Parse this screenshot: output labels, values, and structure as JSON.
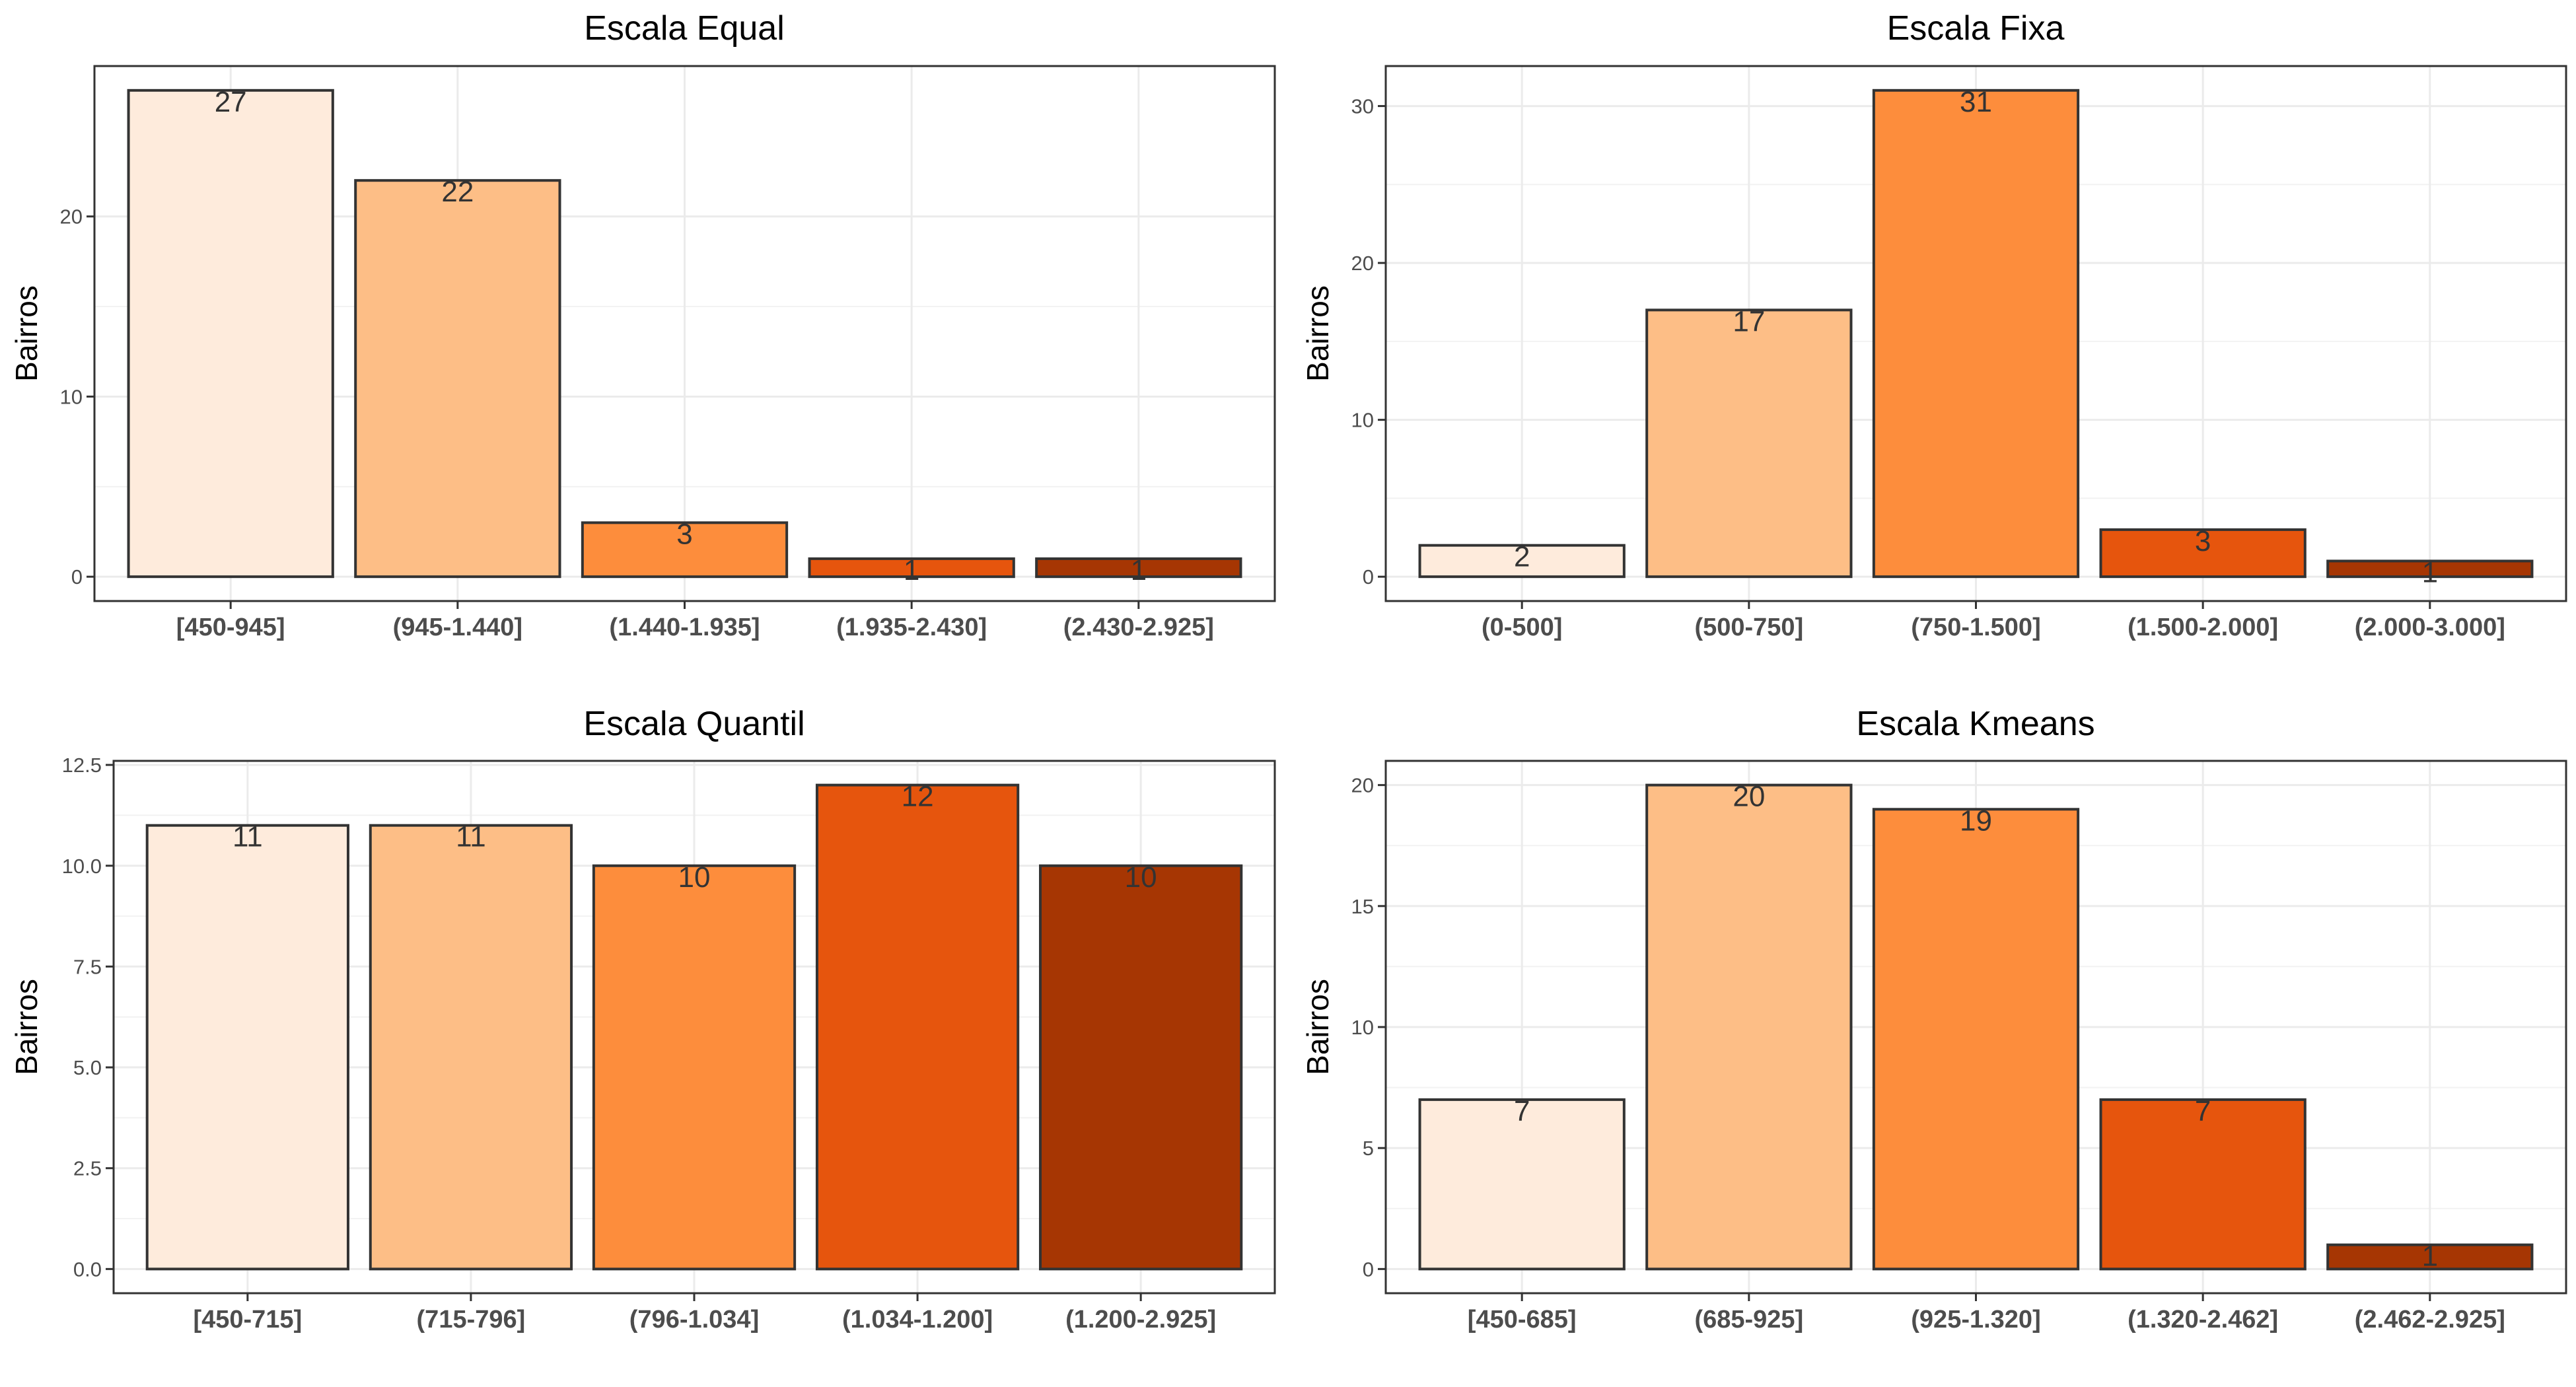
{
  "chart_data": [
    {
      "type": "bar",
      "title": "Escala Equal",
      "ylabel": "Bairros",
      "categories": [
        "[450-945]",
        "(945-1.440]",
        "(1.440-1.935]",
        "(1.935-2.430]",
        "(2.430-2.925]"
      ],
      "values": [
        27,
        22,
        3,
        1,
        1
      ],
      "data_labels": [
        "27",
        "22",
        "3",
        "1",
        "1"
      ],
      "ylim": [
        -1.35,
        28.35
      ],
      "yticks": [
        0,
        10,
        20
      ],
      "ytick_labels": [
        "0",
        "10",
        "20"
      ],
      "colors": [
        "#FEEBDC",
        "#FDBE86",
        "#FD8D3C",
        "#E6550D",
        "#A63603"
      ],
      "grid": true
    },
    {
      "type": "bar",
      "title": "Escala Fixa",
      "ylabel": "Bairros",
      "categories": [
        "(0-500]",
        "(500-750]",
        "(750-1.500]",
        "(1.500-2.000]",
        "(2.000-3.000]"
      ],
      "values": [
        2,
        17,
        31,
        3,
        1
      ],
      "data_labels": [
        "2",
        "17",
        "31",
        "3",
        "1"
      ],
      "ylim": [
        -1.55,
        32.55
      ],
      "yticks": [
        0,
        10,
        20,
        30
      ],
      "ytick_labels": [
        "0",
        "10",
        "20",
        "30"
      ],
      "colors": [
        "#FEEBDC",
        "#FDBE86",
        "#FD8D3C",
        "#E6550D",
        "#A63603"
      ],
      "grid": true
    },
    {
      "type": "bar",
      "title": "Escala Quantil",
      "ylabel": "Bairros",
      "categories": [
        "[450-715]",
        "(715-796]",
        "(796-1.034]",
        "(1.034-1.200]",
        "(1.200-2.925]"
      ],
      "values": [
        11,
        11,
        10,
        12,
        10
      ],
      "data_labels": [
        "11",
        "11",
        "10",
        "12",
        "10"
      ],
      "ylim": [
        -0.6,
        12.6
      ],
      "yticks": [
        0,
        2.5,
        5,
        7.5,
        10,
        12.5
      ],
      "ytick_labels": [
        "0.0",
        "2.5",
        "5.0",
        "7.5",
        "10.0",
        "12.5"
      ],
      "colors": [
        "#FEEBDC",
        "#FDBE86",
        "#FD8D3C",
        "#E6550D",
        "#A63603"
      ],
      "grid": true
    },
    {
      "type": "bar",
      "title": "Escala Kmeans",
      "ylabel": "Bairros",
      "categories": [
        "[450-685]",
        "(685-925]",
        "(925-1.320]",
        "(1.320-2.462]",
        "(2.462-2.925]"
      ],
      "values": [
        7,
        20,
        19,
        7,
        1
      ],
      "data_labels": [
        "7",
        "20",
        "19",
        "7",
        "1"
      ],
      "ylim": [
        -1.0,
        21.0
      ],
      "yticks": [
        0,
        5,
        10,
        15,
        20
      ],
      "ytick_labels": [
        "0",
        "5",
        "10",
        "15",
        "20"
      ],
      "colors": [
        "#FEEBDC",
        "#FDBE86",
        "#FD8D3C",
        "#E6550D",
        "#A63603"
      ],
      "grid": true
    }
  ]
}
